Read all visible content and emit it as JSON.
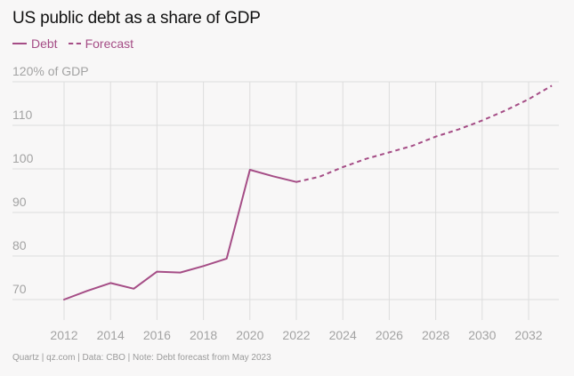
{
  "title": "US public debt as a share of GDP",
  "legend": [
    {
      "label": "Debt",
      "style": "solid"
    },
    {
      "label": "Forecast",
      "style": "dashed"
    }
  ],
  "footer": "Quartz | qz.com | Data: CBO | Note: Debt forecast from May 2023",
  "colors": {
    "line": "#a54d86",
    "grid": "#dddddd",
    "tick": "#a3a3a3"
  },
  "chart_data": {
    "type": "line",
    "title": "US public debt as a share of GDP",
    "xlabel": "",
    "ylabel": "",
    "xlim": [
      2012,
      2033
    ],
    "ylim": [
      66,
      120
    ],
    "x_ticks": [
      "2012",
      "2014",
      "2016",
      "2018",
      "2020",
      "2022",
      "2024",
      "2026",
      "2028",
      "2030",
      "2032"
    ],
    "y_ticks": [
      {
        "value": 70,
        "label": "70"
      },
      {
        "value": 80,
        "label": "80"
      },
      {
        "value": 90,
        "label": "90"
      },
      {
        "value": 100,
        "label": "100"
      },
      {
        "value": 110,
        "label": "110"
      },
      {
        "value": 120,
        "label": "120% of GDP"
      }
    ],
    "grid": true,
    "legend_position": "top-left",
    "series": [
      {
        "name": "Debt",
        "style": "solid",
        "x": [
          2012,
          2013,
          2014,
          2015,
          2016,
          2017,
          2018,
          2019,
          2020,
          2021,
          2022
        ],
        "y": [
          70.0,
          72.0,
          73.8,
          72.5,
          76.4,
          76.2,
          77.7,
          79.4,
          99.8,
          98.3,
          97.0
        ]
      },
      {
        "name": "Forecast",
        "style": "dashed",
        "x": [
          2022,
          2023,
          2024,
          2025,
          2026,
          2027,
          2028,
          2029,
          2030,
          2031,
          2032,
          2033
        ],
        "y": [
          97.0,
          98.2,
          100.4,
          102.3,
          103.8,
          105.3,
          107.4,
          109.1,
          111.1,
          113.4,
          116.0,
          119.1
        ]
      }
    ]
  }
}
